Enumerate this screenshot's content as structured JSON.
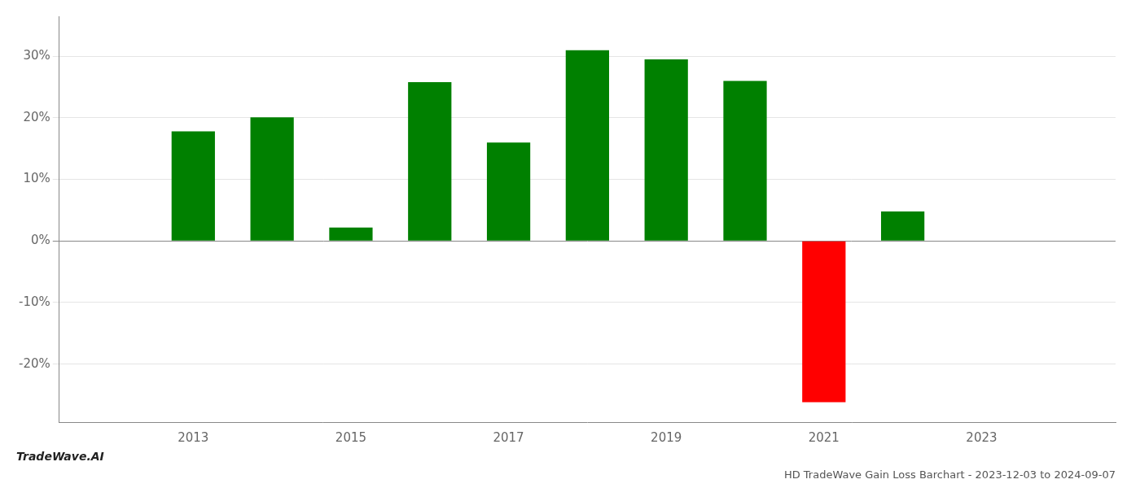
{
  "chart_data": {
    "type": "bar",
    "title": "HD TradeWave Gain Loss Barchart - 2023-12-03 to 2024-09-07",
    "annotations": [
      "TradeWave.AI"
    ],
    "x": [
      2013,
      2014,
      2015,
      2016,
      2017,
      2018,
      2019,
      2020,
      2021,
      2022
    ],
    "values": [
      0.178,
      0.201,
      0.022,
      0.258,
      0.16,
      0.31,
      0.295,
      0.26,
      -0.262,
      0.048
    ],
    "colors": [
      "#008000",
      "#008000",
      "#008000",
      "#008000",
      "#008000",
      "#008000",
      "#008000",
      "#008000",
      "#ff0000",
      "#008000"
    ],
    "xlim": [
      2011.3,
      2024.7
    ],
    "ylim": [
      -0.295,
      0.365
    ],
    "xticks": [
      2013,
      2015,
      2017,
      2019,
      2021,
      2023
    ],
    "yticks": [
      {
        "value": -0.2,
        "label": "-20%"
      },
      {
        "value": -0.1,
        "label": "-10%"
      },
      {
        "value": 0.0,
        "label": "0%"
      },
      {
        "value": 0.1,
        "label": "10%"
      },
      {
        "value": 0.2,
        "label": "20%"
      },
      {
        "value": 0.3,
        "label": "30%"
      }
    ],
    "grid": "y"
  }
}
